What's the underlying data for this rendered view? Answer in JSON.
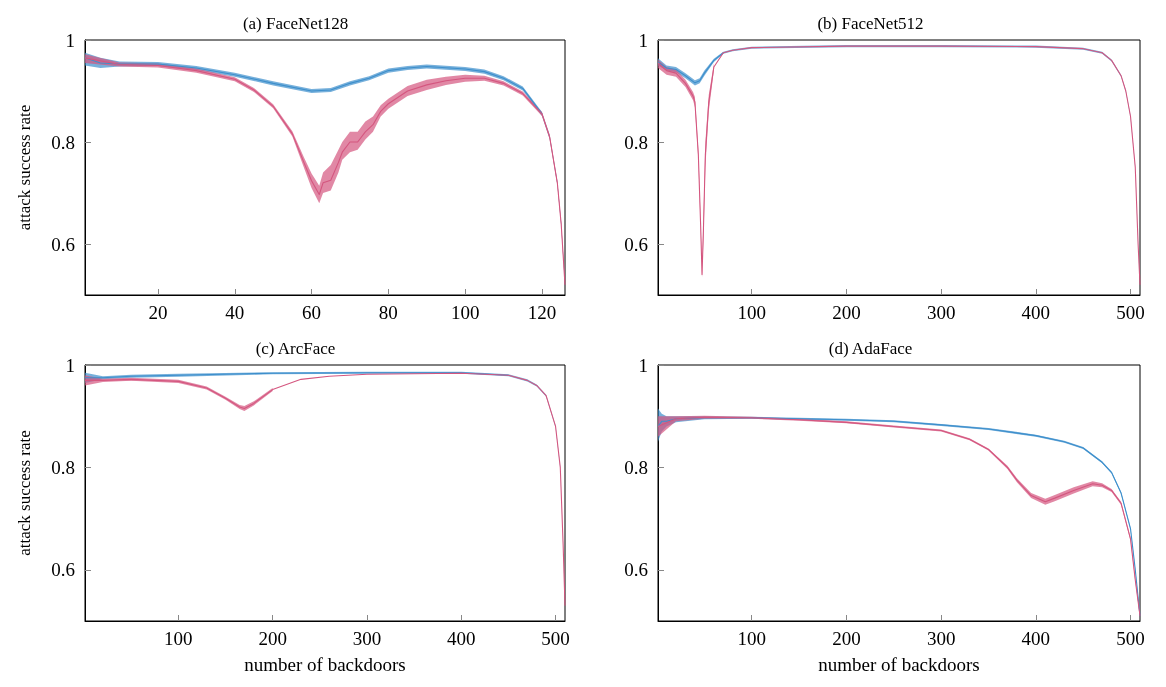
{
  "chart_data": [
    {
      "type": "line",
      "title": "(a) FaceNet128",
      "ylabel": "attack success rate",
      "xlim": [
        1,
        126
      ],
      "xticks": [
        20,
        40,
        60,
        80,
        100,
        120
      ],
      "ylim": [
        0.5,
        1
      ],
      "yticks": [
        0.6,
        0.8,
        1
      ],
      "series": [
        {
          "color": "#3d8fcc",
          "x": [
            1,
            5,
            10,
            20,
            30,
            40,
            50,
            60,
            65,
            70,
            75,
            80,
            85,
            90,
            100,
            105,
            110,
            115,
            120,
            122,
            124,
            125,
            126
          ],
          "values": [
            0.965,
            0.955,
            0.953,
            0.953,
            0.945,
            0.932,
            0.915,
            0.9,
            0.902,
            0.915,
            0.925,
            0.94,
            0.945,
            0.948,
            0.943,
            0.938,
            0.925,
            0.905,
            0.855,
            null,
            null,
            null,
            null
          ],
          "lower": [
            0.95,
            0.945,
            0.948,
            0.949,
            0.941,
            0.928,
            0.911,
            0.896,
            0.898,
            0.911,
            0.921,
            0.936,
            0.941,
            0.944,
            0.939,
            0.934,
            0.921,
            0.901,
            0.851,
            0.806,
            0.716,
            0.636,
            0.516
          ],
          "upper": [
            0.975,
            0.965,
            0.958,
            0.957,
            0.949,
            0.936,
            0.919,
            0.904,
            0.906,
            0.919,
            0.929,
            0.944,
            0.949,
            0.952,
            0.947,
            0.942,
            0.929,
            0.909,
            0.859,
            0.814,
            0.724,
            0.644,
            0.524
          ]
        },
        {
          "color": "#d4567f",
          "x": [
            1,
            10,
            20,
            30,
            40,
            45,
            50,
            55,
            58,
            60,
            62,
            63,
            65,
            67,
            68,
            70,
            72,
            74,
            76,
            78,
            80,
            85,
            90,
            95,
            100,
            105,
            110,
            115,
            120,
            122,
            124,
            125,
            126
          ],
          "values": [
            0.965,
            0.952,
            0.95,
            0.94,
            0.923,
            0.902,
            0.87,
            0.816,
            0.76,
            0.724,
            0.697,
            0.72,
            0.725,
            0.76,
            0.78,
            0.8,
            0.8,
            0.82,
            0.834,
            0.86,
            0.875,
            0.9,
            0.912,
            0.92,
            0.925,
            0.925,
            0.915,
            0.895,
            0.855,
            0.81,
            0.72,
            0.64,
            0.52
          ],
          "lower": [
            0.955,
            0.948,
            0.946,
            0.936,
            0.919,
            0.898,
            0.866,
            0.811,
            0.75,
            0.71,
            0.68,
            0.7,
            0.705,
            0.74,
            0.765,
            0.78,
            0.785,
            0.805,
            0.82,
            0.85,
            0.865,
            0.89,
            0.902,
            0.912,
            0.918,
            0.92,
            0.911,
            0.891,
            0.851,
            0.806,
            0.716,
            0.636,
            0.516
          ],
          "upper": [
            0.972,
            0.956,
            0.954,
            0.944,
            0.927,
            0.906,
            0.874,
            0.821,
            0.77,
            0.738,
            0.714,
            0.74,
            0.755,
            0.785,
            0.8,
            0.82,
            0.82,
            0.84,
            0.85,
            0.872,
            0.885,
            0.91,
            0.922,
            0.928,
            0.932,
            0.93,
            0.919,
            0.899,
            0.859,
            0.814,
            0.724,
            0.644,
            0.524
          ]
        }
      ]
    },
    {
      "type": "line",
      "title": "(b) FaceNet512",
      "xlim": [
        1,
        510
      ],
      "xticks": [
        100,
        200,
        300,
        400,
        500
      ],
      "ylim": [
        0.5,
        1
      ],
      "yticks": [
        0.6,
        0.8,
        1
      ],
      "series": [
        {
          "color": "#3d8fcc",
          "x": [
            1,
            10,
            20,
            30,
            40,
            45,
            50,
            60,
            70,
            80,
            100,
            200,
            300,
            400,
            450,
            470,
            480,
            490,
            495,
            500,
            505,
            508,
            510
          ],
          "values": [
            0.957,
            0.945,
            0.942,
            0.93,
            0.916,
            0.92,
            0.935,
            0.96,
            0.975,
            null,
            null,
            null,
            null,
            null,
            null,
            null,
            null,
            null,
            null,
            null,
            null,
            null,
            null
          ],
          "lower": [
            0.95,
            0.94,
            0.937,
            0.925,
            0.911,
            0.915,
            0.93,
            0.957,
            0.973,
            0.978,
            0.983,
            0.986,
            0.986,
            0.985,
            0.981,
            0.973,
            0.958,
            0.928,
            0.898,
            0.848,
            0.748,
            0.598,
            0.518
          ],
          "upper": [
            0.964,
            0.95,
            0.947,
            0.935,
            0.921,
            0.925,
            0.94,
            0.963,
            0.977,
            0.982,
            0.987,
            0.99,
            0.99,
            0.989,
            0.985,
            0.977,
            0.962,
            0.932,
            0.902,
            0.852,
            0.752,
            0.602,
            0.522
          ]
        },
        {
          "color": "#d4567f",
          "x": [
            1,
            10,
            20,
            30,
            38,
            40,
            43.6,
            46,
            47.5,
            49,
            51,
            54.6,
            60,
            70,
            80,
            100,
            200,
            300,
            400,
            450,
            470,
            480,
            490,
            495,
            500,
            505,
            508,
            510
          ],
          "values": [
            0.955,
            0.94,
            0.935,
            0.915,
            0.89,
            0.878,
            0.775,
            0.638,
            0.54,
            0.63,
            0.775,
            0.878,
            0.947,
            0.975,
            0.98,
            0.985,
            0.988,
            0.988,
            0.987,
            0.983,
            0.975,
            0.96,
            0.93,
            0.9,
            0.85,
            0.75,
            0.6,
            0.52
          ],
          "lower": [
            0.945,
            0.932,
            0.928,
            0.908,
            0.882,
            0.868,
            0.765,
            0.63,
            0.535,
            0.61,
            0.75,
            0.86,
            0.94,
            null,
            null,
            null,
            null,
            null,
            null,
            null,
            null,
            null,
            null,
            null,
            null,
            null,
            null,
            null
          ],
          "upper": [
            0.962,
            0.947,
            0.942,
            0.922,
            0.898,
            0.888,
            0.785,
            0.646,
            0.545,
            0.65,
            0.8,
            0.892,
            0.954,
            null,
            null,
            null,
            null,
            null,
            null,
            null,
            null,
            null,
            null,
            null,
            null,
            null,
            null,
            null
          ]
        }
      ]
    },
    {
      "type": "line",
      "title": "(c) ArcFace",
      "xlabel": "number of backdoors",
      "ylabel": "attack success rate",
      "xlim": [
        1,
        510
      ],
      "xticks": [
        100,
        200,
        300,
        400,
        500
      ],
      "ylim": [
        0.5,
        1
      ],
      "yticks": [
        0.6,
        0.8,
        1
      ],
      "series": [
        {
          "color": "#3d8fcc",
          "x": [
            1,
            20,
            50,
            100,
            200,
            300,
            400,
            450,
            470,
            480,
            490,
            500,
            505,
            508,
            510
          ],
          "values": [
            0.975,
            0.975,
            0.978,
            0.98,
            0.984,
            0.985,
            0.985,
            0.98,
            null,
            null,
            null,
            null,
            null,
            null,
            null
          ],
          "lower": [
            0.965,
            0.972,
            0.975,
            0.977,
            0.982,
            0.983,
            0.983,
            0.978,
            0.968,
            0.958,
            0.938,
            0.878,
            0.798,
            0.648,
            0.528
          ],
          "upper": [
            0.985,
            0.978,
            0.981,
            0.983,
            0.986,
            0.987,
            0.987,
            0.982,
            0.972,
            0.962,
            0.942,
            0.882,
            0.802,
            0.652,
            0.532
          ]
        },
        {
          "color": "#d4567f",
          "x": [
            1,
            20,
            50,
            100,
            130,
            150,
            165,
            170,
            180,
            200,
            230,
            260,
            300,
            400,
            450,
            470,
            480,
            490,
            500,
            505,
            508,
            510
          ],
          "values": [
            0.97,
            0.97,
            0.972,
            0.968,
            0.955,
            0.935,
            0.918,
            0.915,
            0.925,
            0.952,
            0.972,
            0.978,
            0.982,
            0.984,
            0.98,
            0.97,
            0.96,
            0.94,
            0.88,
            0.8,
            0.65,
            0.53
          ],
          "lower": [
            0.96,
            0.967,
            0.969,
            0.965,
            0.952,
            0.932,
            0.914,
            0.91,
            0.921,
            0.949,
            null,
            null,
            null,
            null,
            null,
            null,
            null,
            null,
            null,
            null,
            null,
            null
          ],
          "upper": [
            0.98,
            0.973,
            0.975,
            0.971,
            0.958,
            0.938,
            0.922,
            0.92,
            0.929,
            0.955,
            null,
            null,
            null,
            null,
            null,
            null,
            null,
            null,
            null,
            null,
            null,
            null
          ]
        }
      ]
    },
    {
      "type": "line",
      "title": "(d) AdaFace",
      "xlabel": "number of backdoors",
      "xlim": [
        1,
        510
      ],
      "xticks": [
        100,
        200,
        300,
        400,
        500
      ],
      "ylim": [
        0.5,
        1
      ],
      "yticks": [
        0.6,
        0.8,
        1
      ],
      "series": [
        {
          "color": "#3d8fcc",
          "x": [
            1,
            5,
            10,
            20,
            50,
            100,
            150,
            200,
            250,
            300,
            350,
            400,
            430,
            450,
            470,
            480,
            490,
            500,
            505,
            510
          ],
          "values": [
            0.88,
            0.89,
            0.89,
            0.895,
            0.897,
            0.897,
            0.895,
            0.893,
            0.89,
            0.883,
            0.875,
            0.862,
            0.85,
            0.838,
            0.81,
            0.79,
            0.75,
            0.68,
            0.6,
            0.51
          ],
          "lower": [
            0.85,
            0.87,
            0.88,
            0.888,
            0.894,
            0.895,
            0.893,
            0.891,
            0.888,
            0.881,
            0.873,
            0.86,
            0.848,
            0.836,
            0.808,
            0.788,
            0.748,
            0.678,
            0.598,
            0.508
          ],
          "upper": [
            0.915,
            0.905,
            0.9,
            0.9,
            0.9,
            0.899,
            0.897,
            0.895,
            0.892,
            0.885,
            0.877,
            0.864,
            0.852,
            0.84,
            0.812,
            0.792,
            0.752,
            0.682,
            0.602,
            0.512
          ]
        },
        {
          "color": "#d4567f",
          "x": [
            1,
            20,
            50,
            100,
            150,
            200,
            250,
            300,
            330,
            350,
            370,
            380,
            395,
            410,
            420,
            440,
            460,
            470,
            480,
            490,
            500,
            505,
            510
          ],
          "values": [
            0.88,
            0.895,
            0.898,
            0.897,
            0.893,
            0.888,
            0.88,
            0.872,
            0.855,
            0.835,
            0.8,
            0.775,
            0.745,
            0.733,
            0.74,
            0.755,
            0.768,
            0.765,
            0.755,
            0.73,
            0.66,
            0.58,
            0.51
          ],
          "lower": [
            0.86,
            0.89,
            0.895,
            0.895,
            0.891,
            0.886,
            0.878,
            0.87,
            0.853,
            0.833,
            0.797,
            0.771,
            0.74,
            0.727,
            0.734,
            0.749,
            0.763,
            0.761,
            0.752,
            0.727,
            0.657,
            0.577,
            0.507
          ],
          "upper": [
            0.9,
            0.9,
            0.901,
            0.899,
            0.895,
            0.89,
            0.882,
            0.874,
            0.857,
            0.837,
            0.803,
            0.779,
            0.75,
            0.739,
            0.746,
            0.761,
            0.773,
            0.769,
            0.758,
            0.733,
            0.663,
            0.583,
            0.513
          ]
        }
      ]
    }
  ]
}
